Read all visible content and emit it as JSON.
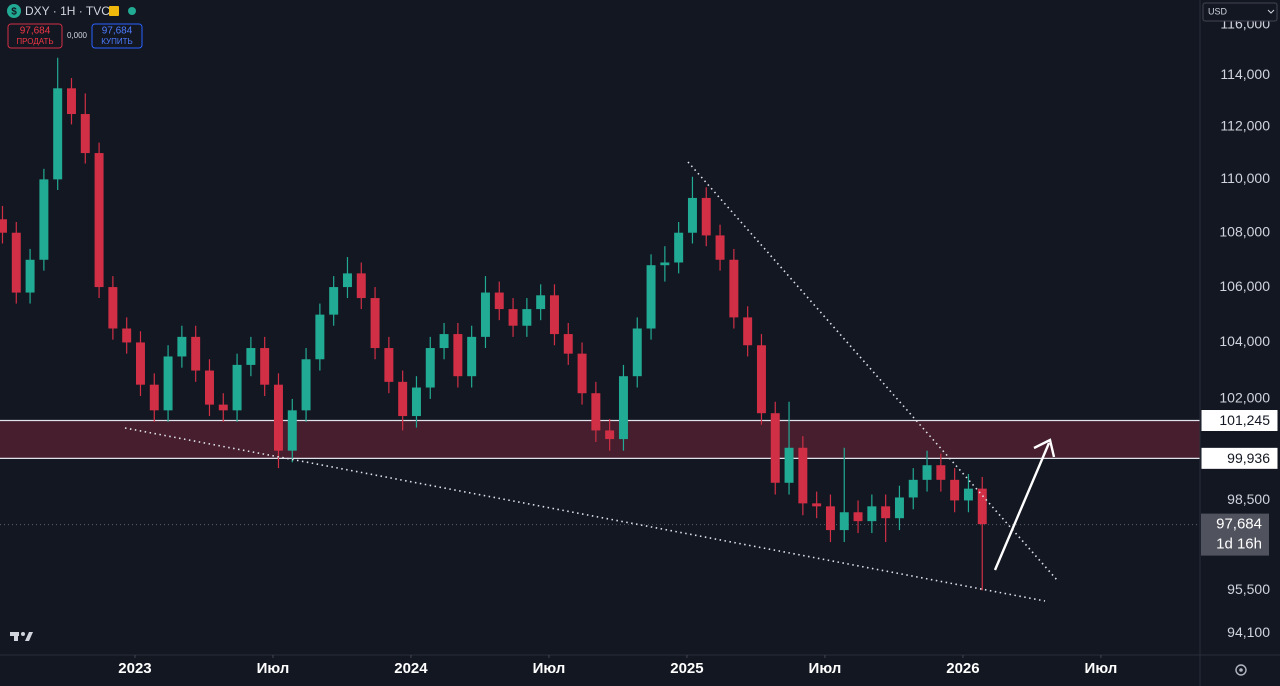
{
  "header": {
    "symbol": "DXY · 1H · TVC",
    "sell": {
      "price": "97,684",
      "label": "ПРОДАТЬ"
    },
    "spread": "0,000",
    "buy": {
      "price": "97,684",
      "label": "КУПИТЬ"
    },
    "currency": "USD"
  },
  "chart_data": {
    "type": "candlestick",
    "log_scale": true,
    "grid": false,
    "colors": {
      "up": "#22ab94",
      "down": "#d12f45"
    },
    "xlim": [
      2022.511,
      2026.859
    ],
    "xticks": [
      {
        "value": 2023,
        "label": "2023"
      },
      {
        "value": 2023.5,
        "label": "Июл"
      },
      {
        "value": 2024,
        "label": "2024"
      },
      {
        "value": 2024.5,
        "label": "Июл"
      },
      {
        "value": 2025,
        "label": "2025"
      },
      {
        "value": 2025.5,
        "label": "Июл"
      },
      {
        "value": 2026,
        "label": "2026"
      },
      {
        "value": 2026.5,
        "label": "Июл"
      }
    ],
    "ylim": [
      93.4,
      117
    ],
    "yticks": [
      {
        "value": 116,
        "label": "116,000"
      },
      {
        "value": 114,
        "label": "114,000"
      },
      {
        "value": 112,
        "label": "112,000"
      },
      {
        "value": 110,
        "label": "110,000"
      },
      {
        "value": 108,
        "label": "108,000"
      },
      {
        "value": 106,
        "label": "106,000"
      },
      {
        "value": 104,
        "label": "104,000"
      },
      {
        "value": 102,
        "label": "102,000"
      },
      {
        "value": 98.5,
        "label": "98,500"
      },
      {
        "value": 95.5,
        "label": "95,500"
      },
      {
        "value": 94.1,
        "label": "94,100"
      }
    ],
    "levels": [
      {
        "value": 101.245,
        "label": "101,245"
      },
      {
        "value": 99.936,
        "label": "99,936"
      }
    ],
    "last_price": {
      "value": 97.684,
      "label": "97,684"
    },
    "countdown": "1d 16h",
    "x": [
      2022.52,
      2022.57,
      2022.62,
      2022.67,
      2022.72,
      2022.77,
      2022.82,
      2022.87,
      2022.92,
      2022.97,
      2023.02,
      2023.07,
      2023.12,
      2023.17,
      2023.22,
      2023.27,
      2023.32,
      2023.37,
      2023.42,
      2023.47,
      2023.52,
      2023.57,
      2023.62,
      2023.67,
      2023.72,
      2023.77,
      2023.82,
      2023.87,
      2023.92,
      2023.97,
      2024.02,
      2024.07,
      2024.12,
      2024.17,
      2024.22,
      2024.27,
      2024.32,
      2024.37,
      2024.42,
      2024.47,
      2024.52,
      2024.57,
      2024.62,
      2024.67,
      2024.72,
      2024.77,
      2024.82,
      2024.87,
      2024.92,
      2024.97,
      2025.02,
      2025.07,
      2025.12,
      2025.17,
      2025.22,
      2025.27,
      2025.32,
      2025.37,
      2025.42,
      2025.47,
      2025.52,
      2025.57,
      2025.62,
      2025.67,
      2025.72,
      2025.77,
      2025.82,
      2025.87,
      2025.92,
      2025.97,
      2026.02,
      2026.07
    ],
    "ohlc": [
      [
        108.5,
        109,
        107.6,
        108
      ],
      [
        108,
        108.4,
        105.4,
        105.8
      ],
      [
        105.8,
        107.4,
        105.4,
        107
      ],
      [
        107,
        110.4,
        106.6,
        110
      ],
      [
        110,
        114.7,
        109.6,
        113.5
      ],
      [
        113.5,
        113.9,
        112.1,
        112.5
      ],
      [
        112.5,
        113.3,
        110.6,
        111
      ],
      [
        111,
        111.4,
        105.6,
        106
      ],
      [
        106,
        106.4,
        104.1,
        104.5
      ],
      [
        104.5,
        104.9,
        103.6,
        104
      ],
      [
        104,
        104.4,
        102.1,
        102.5
      ],
      [
        102.5,
        102.9,
        101.2,
        101.6
      ],
      [
        101.6,
        103.9,
        101.2,
        103.5
      ],
      [
        103.5,
        104.6,
        103.1,
        104.2
      ],
      [
        104.2,
        104.6,
        102.6,
        103
      ],
      [
        103,
        103.4,
        101.4,
        101.8
      ],
      [
        101.8,
        102.2,
        101.2,
        101.6
      ],
      [
        101.6,
        103.6,
        101.2,
        103.2
      ],
      [
        103.2,
        104.2,
        102.8,
        103.8
      ],
      [
        103.8,
        104.2,
        102.1,
        102.5
      ],
      [
        102.5,
        102.9,
        99.6,
        100.2
      ],
      [
        100.2,
        102,
        99.8,
        101.6
      ],
      [
        101.6,
        103.8,
        101.2,
        103.4
      ],
      [
        103.4,
        105.4,
        103,
        105
      ],
      [
        105,
        106.4,
        104.6,
        106
      ],
      [
        106,
        107.1,
        105.6,
        106.5
      ],
      [
        106.5,
        106.9,
        105.2,
        105.6
      ],
      [
        105.6,
        106,
        103.4,
        103.8
      ],
      [
        103.8,
        104.2,
        102.2,
        102.6
      ],
      [
        102.6,
        103,
        100.9,
        101.4
      ],
      [
        101.4,
        102.8,
        101,
        102.4
      ],
      [
        102.4,
        104.2,
        102,
        103.8
      ],
      [
        103.8,
        104.7,
        103.4,
        104.3
      ],
      [
        104.3,
        104.7,
        102.4,
        102.8
      ],
      [
        102.8,
        104.6,
        102.4,
        104.2
      ],
      [
        104.2,
        106.4,
        103.8,
        105.8
      ],
      [
        105.8,
        106.2,
        104.8,
        105.2
      ],
      [
        105.2,
        105.6,
        104.2,
        104.6
      ],
      [
        104.6,
        105.6,
        104.2,
        105.2
      ],
      [
        105.2,
        106.1,
        104.8,
        105.7
      ],
      [
        105.7,
        106.1,
        103.9,
        104.3
      ],
      [
        104.3,
        104.7,
        103.2,
        103.6
      ],
      [
        103.6,
        104,
        101.8,
        102.2
      ],
      [
        102.2,
        102.6,
        100.5,
        100.9
      ],
      [
        100.9,
        101.3,
        100.2,
        100.6
      ],
      [
        100.6,
        103.2,
        100.2,
        102.8
      ],
      [
        102.8,
        104.9,
        102.4,
        104.5
      ],
      [
        104.5,
        107.2,
        104.1,
        106.8
      ],
      [
        106.8,
        107.5,
        106.2,
        106.9
      ],
      [
        106.9,
        108.4,
        106.5,
        108
      ],
      [
        108,
        110.1,
        107.6,
        109.3
      ],
      [
        109.3,
        109.7,
        107.5,
        107.9
      ],
      [
        107.9,
        108.3,
        106.6,
        107
      ],
      [
        107,
        107.4,
        104.5,
        104.9
      ],
      [
        104.9,
        105.3,
        103.5,
        103.9
      ],
      [
        103.9,
        104.3,
        101.1,
        101.5
      ],
      [
        101.5,
        101.9,
        98.7,
        99.1
      ],
      [
        99.1,
        101.9,
        98.7,
        100.3
      ],
      [
        100.3,
        100.7,
        98,
        98.4
      ],
      [
        98.4,
        98.8,
        97.9,
        98.3
      ],
      [
        98.3,
        98.7,
        97.1,
        97.5
      ],
      [
        97.5,
        100.3,
        97.1,
        98.1
      ],
      [
        98.1,
        98.5,
        97.4,
        97.8
      ],
      [
        97.8,
        98.7,
        97.4,
        98.3
      ],
      [
        98.3,
        98.7,
        97.1,
        97.9
      ],
      [
        97.9,
        99,
        97.5,
        98.6
      ],
      [
        98.6,
        99.6,
        98.2,
        99.2
      ],
      [
        99.2,
        100.2,
        98.8,
        99.7
      ],
      [
        99.7,
        100.1,
        98.8,
        99.2
      ],
      [
        99.2,
        99.6,
        98.1,
        98.5
      ],
      [
        98.5,
        99.4,
        98.1,
        98.9
      ],
      [
        98.9,
        99.3,
        95.5,
        97.7
      ]
    ]
  }
}
